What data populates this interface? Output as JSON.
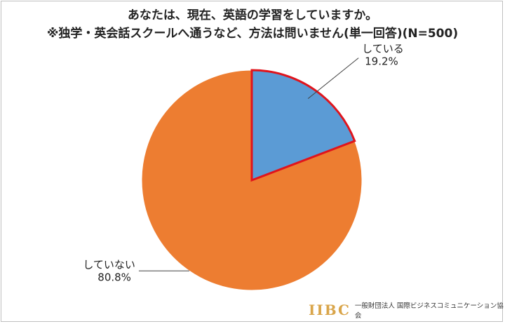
{
  "chart_data": {
    "type": "pie",
    "title": "あなたは、現在、英語の学習をしていますか。",
    "subtitle": "※独学・英会話スクールへ通うなど、方法は問いません(単一回答)(N=500)",
    "slices": [
      {
        "label": "している",
        "value": 19.2,
        "display": "19.2%",
        "color": "#5b9bd5",
        "highlighted": true,
        "highlight_color": "#e0141c"
      },
      {
        "label": "していない",
        "value": 80.8,
        "display": "80.8%",
        "color": "#ed7d31",
        "highlighted": false
      }
    ],
    "start_angle_deg": 0,
    "direction": "clockwise",
    "legend": "none",
    "labels": "outside with leader lines"
  },
  "footer": {
    "logo_mark": "IIBC",
    "logo_text": "一般財団法人 国際ビジネスコミュニケーション協会"
  }
}
